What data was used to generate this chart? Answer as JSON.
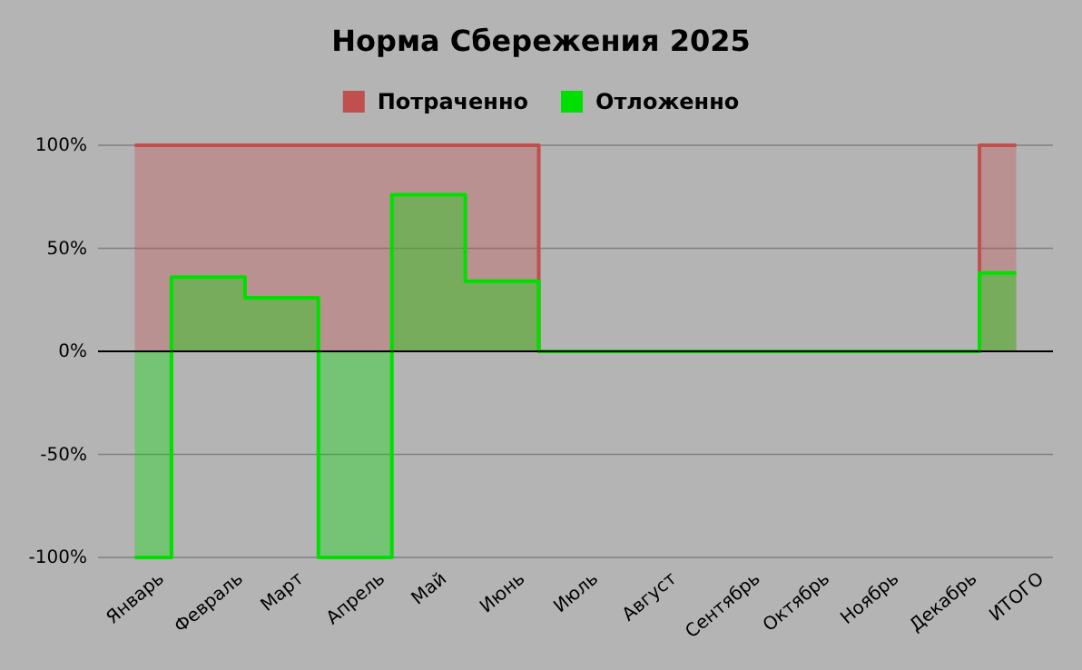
{
  "chart_data": {
    "type": "area",
    "title": "Норма Сбережения 2025",
    "categories": [
      "Январь",
      "Февраль",
      "Март",
      "Апрель",
      "Май",
      "Июнь",
      "Июль",
      "Август",
      "Сентябрь",
      "Октябрь",
      "Ноябрь",
      "Декабрь",
      "ИТОГО"
    ],
    "series": [
      {
        "name": "Потраченно",
        "color": "#c0504d",
        "values": [
          100,
          100,
          100,
          100,
          100,
          100,
          0,
          0,
          0,
          0,
          0,
          0,
          100
        ]
      },
      {
        "name": "Отложенно",
        "color": "#00e000",
        "values": [
          -100,
          36,
          26,
          -100,
          76,
          34,
          0,
          0,
          0,
          0,
          0,
          0,
          38
        ]
      }
    ],
    "ylim": [
      -100,
      100
    ],
    "yticks": [
      {
        "value": -100,
        "label": "-100%"
      },
      {
        "value": -50,
        "label": "-50%"
      },
      {
        "value": 0,
        "label": "0%"
      },
      {
        "value": 50,
        "label": "50%"
      },
      {
        "value": 100,
        "label": "100%"
      }
    ],
    "grid": "y",
    "legend": "top"
  }
}
